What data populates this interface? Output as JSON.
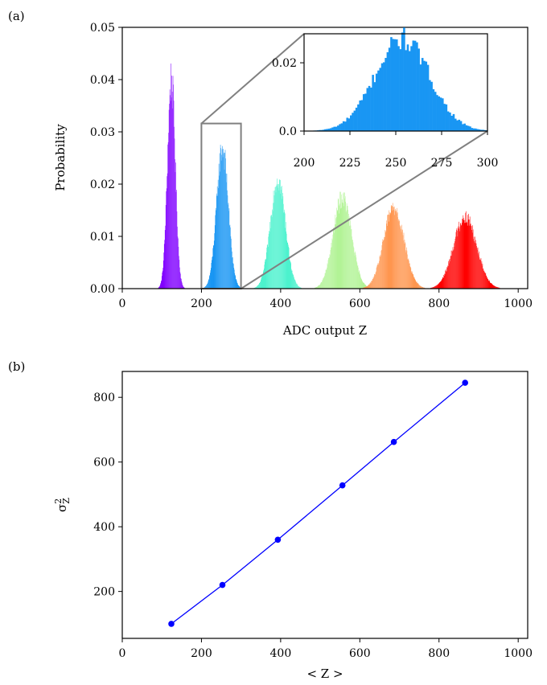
{
  "chart_data": [
    {
      "panel_label": "(a)",
      "type": "histogram",
      "xlabel": "ADC output Z",
      "ylabel": "Probability",
      "xlim": [
        0,
        1024
      ],
      "ylim": [
        0,
        0.05
      ],
      "xticks": [
        "0",
        "200",
        "400",
        "600",
        "800",
        "1000"
      ],
      "yticks": [
        "0.00",
        "0.01",
        "0.02",
        "0.03",
        "0.04",
        "0.05"
      ],
      "grid": false,
      "series": [
        {
          "mean": 124,
          "variance": 100,
          "color": "#8000ff"
        },
        {
          "mean": 253,
          "variance": 220,
          "color": "#1996f3"
        },
        {
          "mean": 393,
          "variance": 360,
          "color": "#4cf2ce"
        },
        {
          "mean": 556,
          "variance": 528,
          "color": "#b2f396"
        },
        {
          "mean": 686,
          "variance": 662,
          "color": "#ff964f"
        },
        {
          "mean": 866,
          "variance": 845,
          "color": "#ff0000"
        }
      ],
      "zoom_box": {
        "x": [
          200,
          300
        ],
        "y": [
          0,
          0.0316
        ],
        "edge_color": "#808080"
      },
      "inset": {
        "xlim": [
          200,
          300
        ],
        "ylim": [
          0,
          0.0285
        ],
        "xticks": [
          "200",
          "225",
          "250",
          "275",
          "300"
        ],
        "yticks": [
          "0.0",
          "0.02"
        ],
        "mean": 253,
        "variance": 220,
        "color": "#1996f3"
      }
    },
    {
      "panel_label": "(b)",
      "type": "line",
      "xlabel": "< Z >",
      "ylabel": "σ²_Z",
      "xlim": [
        0,
        1024
      ],
      "ylim": [
        55,
        880
      ],
      "xticks": [
        "0",
        "200",
        "400",
        "600",
        "800",
        "1000"
      ],
      "yticks": [
        "200",
        "400",
        "600",
        "800"
      ],
      "grid": false,
      "color": "#0000ff",
      "x": [
        124,
        253,
        393,
        556,
        686,
        866
      ],
      "y": [
        100,
        220,
        360,
        528,
        662,
        845
      ]
    }
  ]
}
